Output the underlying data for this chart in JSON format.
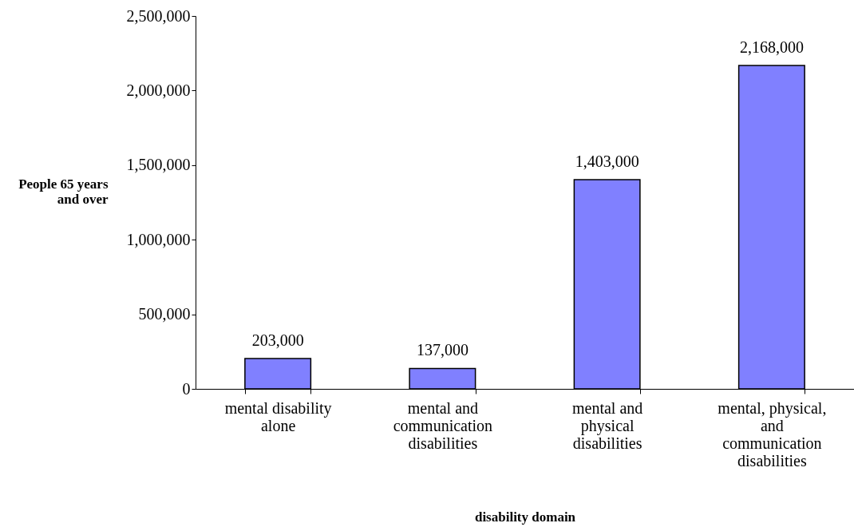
{
  "chart_data": {
    "type": "bar",
    "xlabel": "disability domain",
    "ylabel": "People  65 years\nand over",
    "categories": [
      "mental disability\nalone",
      "mental and\ncommunication\ndisabilities",
      "mental and\nphysical\ndisabilities",
      "mental, physical,\nand\ncommunication\ndisabilities"
    ],
    "values": [
      203000,
      137000,
      1403000,
      2168000
    ],
    "color": "#8080ff",
    "value_labels": [
      "203,000",
      "137,000",
      "1,403,000",
      "2,168,000"
    ],
    "ylim": [
      0,
      2500000
    ],
    "yticks": [
      0,
      {
        "value": 500000,
        "label": "500,000"
      },
      {
        "value": 1000000,
        "label": "1,000,000"
      },
      {
        "value": 1500000,
        "label": "1,500,000"
      },
      {
        "value": 2000000,
        "label": "2,000,000"
      },
      {
        "value": 2500000,
        "label": "2,500,000"
      }
    ],
    "grid": false
  }
}
